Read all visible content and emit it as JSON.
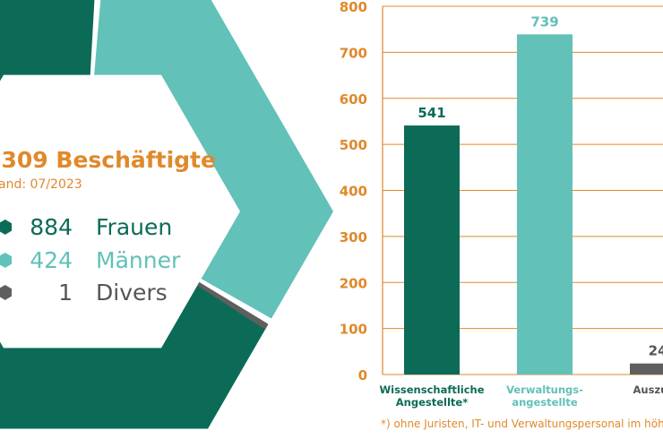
{
  "colors": {
    "frauen": "#0b6b57",
    "maenner": "#62c1b8",
    "divers": "#5f5f5f",
    "accent": "#e0892b",
    "text_dark": "#0b6b57",
    "text_grey": "#555555"
  },
  "summary": {
    "title": ".309 Beschäftigte",
    "subtitle": "and: 07/2023",
    "legend": [
      {
        "count": "884",
        "name": "Frauen",
        "color_key": "frauen"
      },
      {
        "count": "424",
        "name": "Männer",
        "color_key": "maenner"
      },
      {
        "count": "1",
        "name": "Divers",
        "color_key": "divers"
      }
    ]
  },
  "chart_data": [
    {
      "type": "pie",
      "title": "",
      "series": [
        {
          "name": "",
          "values": [
            884,
            424,
            1
          ],
          "categories": [
            "Frauen",
            "Männer",
            "Divers"
          ]
        }
      ]
    },
    {
      "type": "bar",
      "title": "",
      "xlabel": "",
      "ylabel": "",
      "categories": [
        "Wissenschaftliche Angestellte*",
        "Verwaltungs- angestellte",
        "Auszubil"
      ],
      "category_lines": [
        [
          "Wissenschaftliche",
          "Angestellte*"
        ],
        [
          "Verwaltungs-",
          "angestellte"
        ],
        [
          "Auszubil"
        ]
      ],
      "values": [
        541,
        739,
        24
      ],
      "value_labels": [
        "541",
        "739",
        "24"
      ],
      "bar_colors": [
        "#0b6b57",
        "#62c1b8",
        "#5f5f5f"
      ],
      "label_colors": [
        "#0b6b57",
        "#62c1b8",
        "#555555"
      ],
      "yticks": [
        0,
        100,
        200,
        300,
        400,
        500,
        600,
        700,
        800
      ],
      "ylim": [
        0,
        800
      ],
      "grid": true
    }
  ],
  "footnote": "*) ohne Juristen, IT- und Verwaltungspersonal im höhered"
}
